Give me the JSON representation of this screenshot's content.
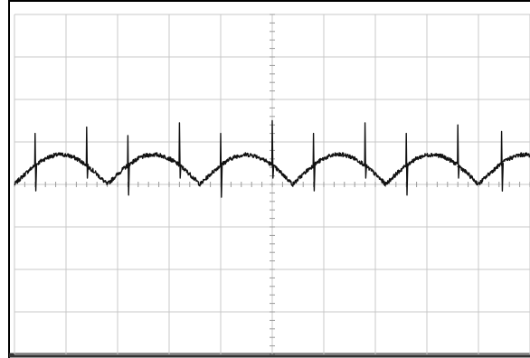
{
  "chart_data": {
    "type": "line",
    "title": "",
    "xlabel": "",
    "ylabel": "",
    "grid": true,
    "legend": "none",
    "divisions": {
      "x": 10,
      "y": 8
    },
    "xlim": [
      0,
      10
    ],
    "ylim": [
      -4,
      4
    ],
    "series": [
      {
        "line_color": "#111111",
        "waveform": "rectified-sine",
        "period_div": 1.8,
        "phase_div": 0.0,
        "baseline_div": 0.0,
        "peak_div": 0.7,
        "noise_div": 0.05,
        "spikes": [
          {
            "x": 0.4,
            "up": 0.75,
            "down": 0.6
          },
          {
            "x": 1.4,
            "up": 0.9,
            "down": 0.3
          },
          {
            "x": 2.2,
            "up": 0.7,
            "down": 0.7
          },
          {
            "x": 3.2,
            "up": 1.0,
            "down": 0.3
          },
          {
            "x": 4.0,
            "up": 0.75,
            "down": 0.75
          },
          {
            "x": 5.0,
            "up": 1.05,
            "down": 0.3
          },
          {
            "x": 5.8,
            "up": 0.75,
            "down": 0.6
          },
          {
            "x": 6.8,
            "up": 1.0,
            "down": 0.3
          },
          {
            "x": 7.6,
            "up": 0.75,
            "down": 0.7
          },
          {
            "x": 8.6,
            "up": 0.95,
            "down": 0.3
          },
          {
            "x": 9.45,
            "up": 0.75,
            "down": 0.65
          }
        ]
      }
    ]
  }
}
